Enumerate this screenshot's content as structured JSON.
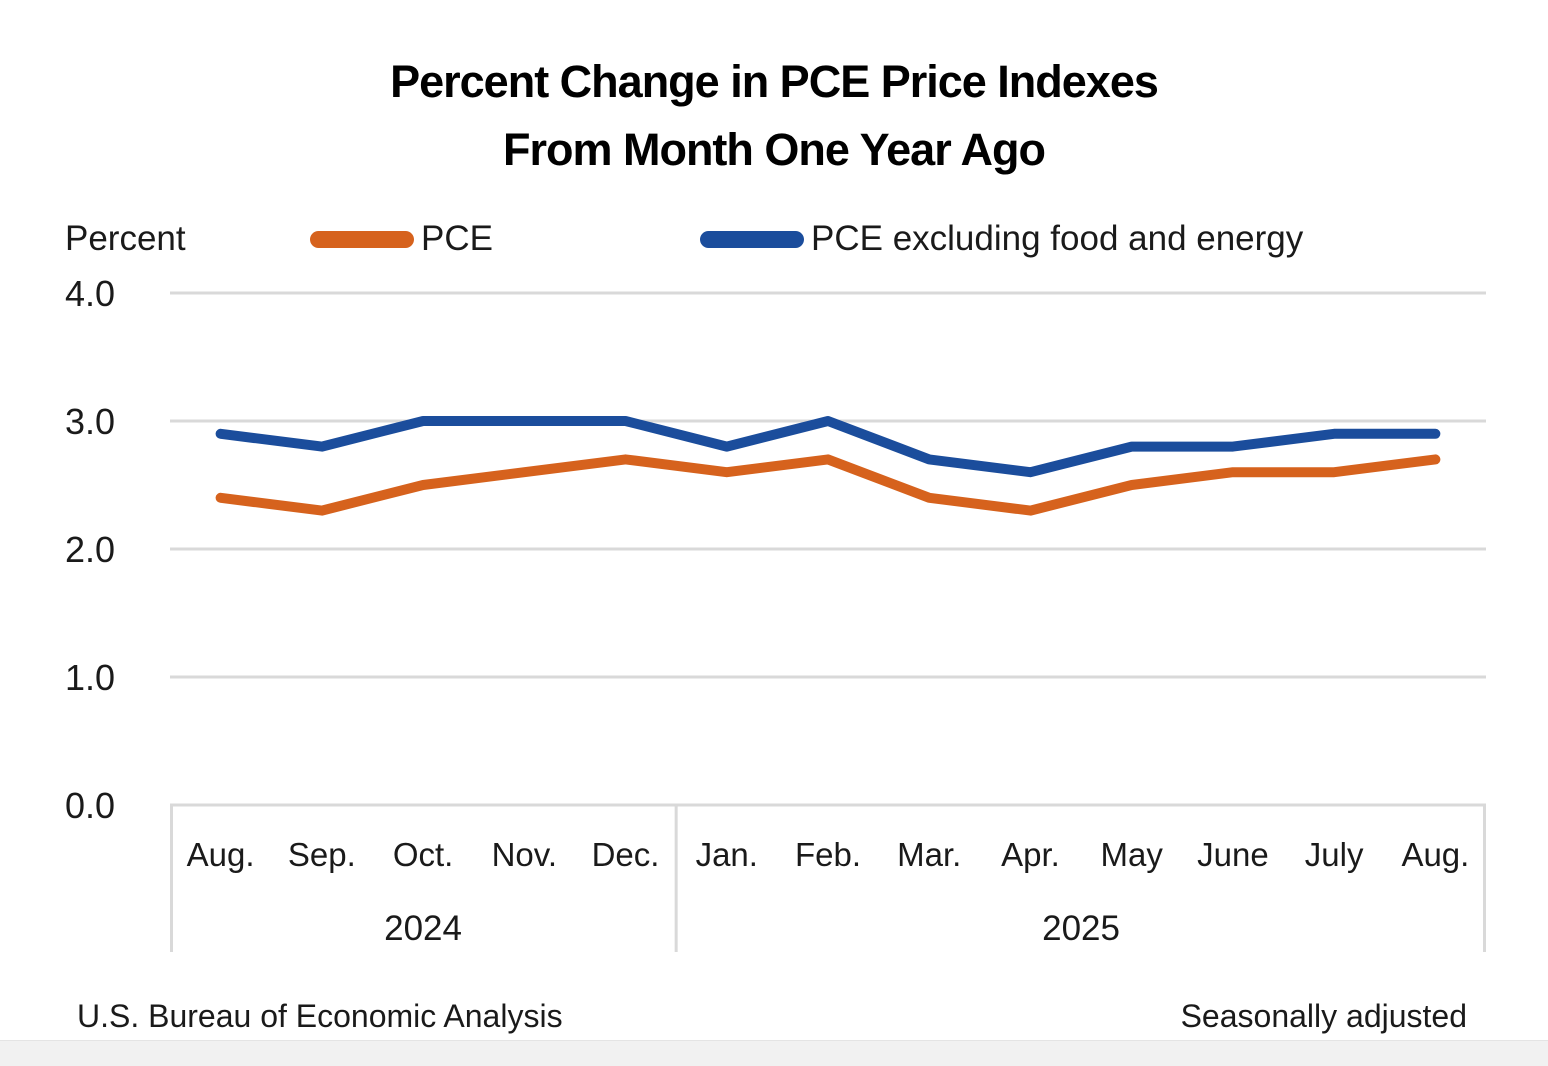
{
  "title": {
    "line1": "Percent Change in PCE Price Indexes",
    "line2": "From Month One Year Ago"
  },
  "axis_unit_label": "Percent",
  "legend": [
    {
      "label": "PCE",
      "color": "#D6621D"
    },
    {
      "label": "PCE excluding food and energy",
      "color": "#1B4D9C"
    }
  ],
  "footer": {
    "left": "U.S. Bureau of Economic Analysis",
    "right": "Seasonally adjusted"
  },
  "colors": {
    "pce_line": "#D6621D",
    "core_line": "#1B4D9C",
    "gridline": "#D9D9D9",
    "text": "#1a1a1a"
  },
  "chart_data": {
    "type": "line",
    "title": "Percent Change in PCE Price Indexes From Month One Year Ago",
    "ylabel": "Percent",
    "ylim": [
      0.0,
      4.0
    ],
    "yticks": [
      0.0,
      1.0,
      2.0,
      3.0,
      4.0
    ],
    "ytick_labels": [
      "0.0",
      "1.0",
      "2.0",
      "3.0",
      "4.0"
    ],
    "grid": "horizontal",
    "legend_position": "top",
    "categories": [
      "Aug.",
      "Sep.",
      "Oct.",
      "Nov.",
      "Dec.",
      "Jan.",
      "Feb.",
      "Mar.",
      "Apr.",
      "May",
      "June",
      "July",
      "Aug."
    ],
    "year_groups": [
      {
        "label": "2024",
        "start": 0,
        "end": 4
      },
      {
        "label": "2025",
        "start": 5,
        "end": 12
      }
    ],
    "series": [
      {
        "name": "PCE",
        "color": "#D6621D",
        "values": [
          2.4,
          2.3,
          2.5,
          2.6,
          2.7,
          2.6,
          2.7,
          2.4,
          2.3,
          2.5,
          2.6,
          2.6,
          2.7
        ]
      },
      {
        "name": "PCE excluding food and energy",
        "color": "#1B4D9C",
        "values": [
          2.9,
          2.8,
          3.0,
          3.0,
          3.0,
          2.8,
          3.0,
          2.7,
          2.6,
          2.8,
          2.8,
          2.9,
          2.9
        ]
      }
    ],
    "note": "Seasonally adjusted",
    "source": "U.S. Bureau of Economic Analysis"
  }
}
